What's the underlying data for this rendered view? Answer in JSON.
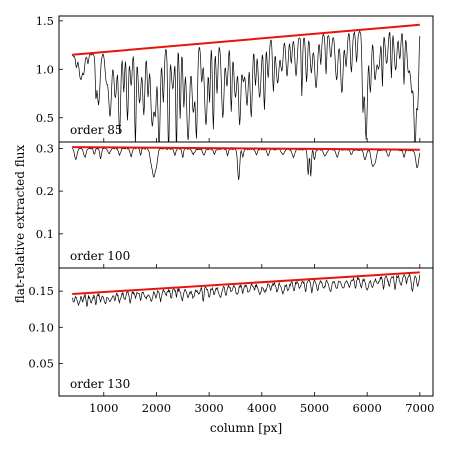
{
  "figure": {
    "ylabel": "flat-relative extracted flux",
    "xlabel": "column [px]",
    "x_ticks": [
      1000,
      2000,
      3000,
      4000,
      5000,
      6000,
      7000
    ],
    "x_tick_labels": [
      "1000",
      "2000",
      "3000",
      "4000",
      "5000",
      "6000",
      "7000"
    ]
  },
  "chart_data": [
    {
      "type": "line",
      "annotation": "order 85",
      "xlim": [
        150,
        7250
      ],
      "ylim": [
        0.25,
        1.55
      ],
      "y_ticks": [
        0.5,
        1.0,
        1.5
      ],
      "y_tick_labels": [
        "0.5",
        "1.0",
        "1.5"
      ],
      "x_range": [
        400,
        7000
      ],
      "series": [
        {
          "role": "spectrum",
          "color": "#000000",
          "continuum": [
            1.15,
            1.45
          ],
          "noise": 0.02,
          "absorption_lines": [
            [
              480,
              0.1
            ],
            [
              560,
              0.22
            ],
            [
              620,
              0.15
            ],
            [
              700,
              0.08
            ],
            [
              850,
              0.3
            ],
            [
              900,
              0.45
            ],
            [
              1050,
              0.25
            ],
            [
              1120,
              0.55
            ],
            [
              1220,
              0.4
            ],
            [
              1300,
              0.7
            ],
            [
              1380,
              0.35
            ],
            [
              1450,
              0.6
            ],
            [
              1520,
              0.3
            ],
            [
              1600,
              0.8
            ],
            [
              1680,
              0.45
            ],
            [
              1760,
              0.55
            ],
            [
              1840,
              0.4
            ],
            [
              1920,
              0.65
            ],
            [
              1980,
              0.5
            ],
            [
              2050,
              0.82
            ],
            [
              2130,
              0.45
            ],
            [
              2230,
              0.88
            ],
            [
              2310,
              0.35
            ],
            [
              2380,
              0.9
            ],
            [
              2450,
              0.6
            ],
            [
              2520,
              0.5
            ],
            [
              2600,
              0.78
            ],
            [
              2700,
              0.55
            ],
            [
              2760,
              0.72
            ],
            [
              2860,
              0.3
            ],
            [
              2940,
              0.65
            ],
            [
              3010,
              0.45
            ],
            [
              3080,
              0.7
            ],
            [
              3150,
              0.4
            ],
            [
              3260,
              0.6
            ],
            [
              3340,
              0.35
            ],
            [
              3420,
              0.55
            ],
            [
              3500,
              0.45
            ],
            [
              3580,
              0.65
            ],
            [
              3650,
              0.3
            ],
            [
              3720,
              0.5
            ],
            [
              3800,
              0.6
            ],
            [
              3880,
              0.35
            ],
            [
              3960,
              0.45
            ],
            [
              4050,
              0.55
            ],
            [
              4120,
              0.3
            ],
            [
              4220,
              0.4
            ],
            [
              4300,
              0.35
            ],
            [
              4380,
              0.25
            ],
            [
              4480,
              0.3
            ],
            [
              4560,
              0.2
            ],
            [
              4650,
              0.3
            ],
            [
              4760,
              0.45
            ],
            [
              4850,
              0.35
            ],
            [
              4940,
              0.28
            ],
            [
              5030,
              0.4
            ],
            [
              5120,
              0.22
            ],
            [
              5220,
              0.3
            ],
            [
              5310,
              0.18
            ],
            [
              5420,
              0.35
            ],
            [
              5520,
              0.45
            ],
            [
              5600,
              0.25
            ],
            [
              5700,
              0.3
            ],
            [
              5800,
              0.22
            ],
            [
              5920,
              0.55
            ],
            [
              5980,
              0.8
            ],
            [
              6060,
              0.45
            ],
            [
              6150,
              0.35
            ],
            [
              6220,
              0.28
            ],
            [
              6290,
              0.4
            ],
            [
              6370,
              0.25
            ],
            [
              6460,
              0.35
            ],
            [
              6540,
              0.3
            ],
            [
              6620,
              0.22
            ],
            [
              6700,
              0.4
            ],
            [
              6780,
              0.3
            ],
            [
              6850,
              0.45
            ],
            [
              6910,
              0.82
            ],
            [
              6960,
              0.55
            ]
          ]
        },
        {
          "role": "blaze fit",
          "color": "#e8140c",
          "x": [
            400,
            7000
          ],
          "y": [
            1.15,
            1.46
          ]
        }
      ]
    },
    {
      "type": "line",
      "annotation": "order 100",
      "xlim": [
        150,
        7250
      ],
      "ylim": [
        0.02,
        0.315
      ],
      "y_ticks": [
        0.1,
        0.2,
        0.3
      ],
      "y_tick_labels": [
        "0.1",
        "0.2",
        "0.3"
      ],
      "x_range": [
        400,
        7000
      ],
      "series": [
        {
          "role": "spectrum",
          "color": "#000000",
          "continuum": [
            0.302,
            0.297
          ],
          "noise": 0.003,
          "absorption_lines": [
            [
              470,
              0.09
            ],
            [
              640,
              0.07
            ],
            [
              820,
              0.05
            ],
            [
              940,
              0.08
            ],
            [
              1100,
              0.04
            ],
            [
              1300,
              0.05
            ],
            [
              1520,
              0.06
            ],
            [
              1700,
              0.05
            ],
            [
              1900,
              0.1
            ],
            [
              1950,
              0.2
            ],
            [
              2000,
              0.12
            ],
            [
              2350,
              0.05
            ],
            [
              2500,
              0.07
            ],
            [
              2700,
              0.04
            ],
            [
              2900,
              0.05
            ],
            [
              3100,
              0.04
            ],
            [
              3350,
              0.05
            ],
            [
              3560,
              0.24
            ],
            [
              3640,
              0.06
            ],
            [
              3900,
              0.04
            ],
            [
              4120,
              0.05
            ],
            [
              4400,
              0.04
            ],
            [
              4600,
              0.06
            ],
            [
              4880,
              0.2
            ],
            [
              4930,
              0.21
            ],
            [
              5000,
              0.08
            ],
            [
              5200,
              0.05
            ],
            [
              5430,
              0.06
            ],
            [
              5700,
              0.04
            ],
            [
              5960,
              0.08
            ],
            [
              6100,
              0.11
            ],
            [
              6150,
              0.09
            ],
            [
              6400,
              0.05
            ],
            [
              6700,
              0.06
            ],
            [
              6950,
              0.14
            ]
          ]
        },
        {
          "role": "blaze fit",
          "color": "#e8140c",
          "x": [
            400,
            7000
          ],
          "y": [
            0.303,
            0.297
          ]
        }
      ]
    },
    {
      "type": "line",
      "annotation": "order 130",
      "xlim": [
        150,
        7250
      ],
      "ylim": [
        0.005,
        0.182
      ],
      "y_ticks": [
        0.05,
        0.1,
        0.15
      ],
      "y_tick_labels": [
        "0.05",
        "0.10",
        "0.15"
      ],
      "x_range": [
        400,
        7000
      ],
      "series": [
        {
          "role": "spectrum",
          "color": "#000000",
          "continuum": [
            0.145,
            0.175
          ],
          "noise": 0.004,
          "absorption_lines": [
            [
              430,
              0.06
            ],
            [
              520,
              0.09
            ],
            [
              600,
              0.05
            ],
            [
              680,
              0.11
            ],
            [
              760,
              0.07
            ],
            [
              850,
              0.1
            ],
            [
              940,
              0.06
            ],
            [
              1030,
              0.09
            ],
            [
              1120,
              0.07
            ],
            [
              1210,
              0.06
            ],
            [
              1300,
              0.08
            ],
            [
              1400,
              0.06
            ],
            [
              1500,
              0.09
            ],
            [
              1600,
              0.05
            ],
            [
              1700,
              0.08
            ],
            [
              1800,
              0.06
            ],
            [
              1900,
              0.1
            ],
            [
              1990,
              0.07
            ],
            [
              2080,
              0.09
            ],
            [
              2180,
              0.05
            ],
            [
              2280,
              0.08
            ],
            [
              2380,
              0.06
            ],
            [
              2490,
              0.1
            ],
            [
              2600,
              0.07
            ],
            [
              2700,
              0.08
            ],
            [
              2800,
              0.05
            ],
            [
              2890,
              0.13
            ],
            [
              3000,
              0.08
            ],
            [
              3100,
              0.06
            ],
            [
              3210,
              0.09
            ],
            [
              3320,
              0.07
            ],
            [
              3420,
              0.05
            ],
            [
              3530,
              0.08
            ],
            [
              3640,
              0.06
            ],
            [
              3750,
              0.07
            ],
            [
              3860,
              0.05
            ],
            [
              3960,
              0.08
            ],
            [
              4060,
              0.06
            ],
            [
              4170,
              0.05
            ],
            [
              4290,
              0.07
            ],
            [
              4400,
              0.09
            ],
            [
              4500,
              0.06
            ],
            [
              4610,
              0.07
            ],
            [
              4720,
              0.05
            ],
            [
              4830,
              0.08
            ],
            [
              4950,
              0.1
            ],
            [
              5060,
              0.07
            ],
            [
              5180,
              0.06
            ],
            [
              5300,
              0.09
            ],
            [
              5420,
              0.07
            ],
            [
              5540,
              0.08
            ],
            [
              5660,
              0.06
            ],
            [
              5780,
              0.09
            ],
            [
              5890,
              0.07
            ],
            [
              6000,
              0.1
            ],
            [
              6100,
              0.08
            ],
            [
              6200,
              0.06
            ],
            [
              6310,
              0.09
            ],
            [
              6420,
              0.07
            ],
            [
              6530,
              0.11
            ],
            [
              6640,
              0.08
            ],
            [
              6750,
              0.06
            ],
            [
              6860,
              0.12
            ],
            [
              6960,
              0.09
            ]
          ]
        },
        {
          "role": "blaze fit",
          "color": "#e8140c",
          "x": [
            400,
            7000
          ],
          "y": [
            0.146,
            0.176
          ]
        }
      ]
    }
  ]
}
